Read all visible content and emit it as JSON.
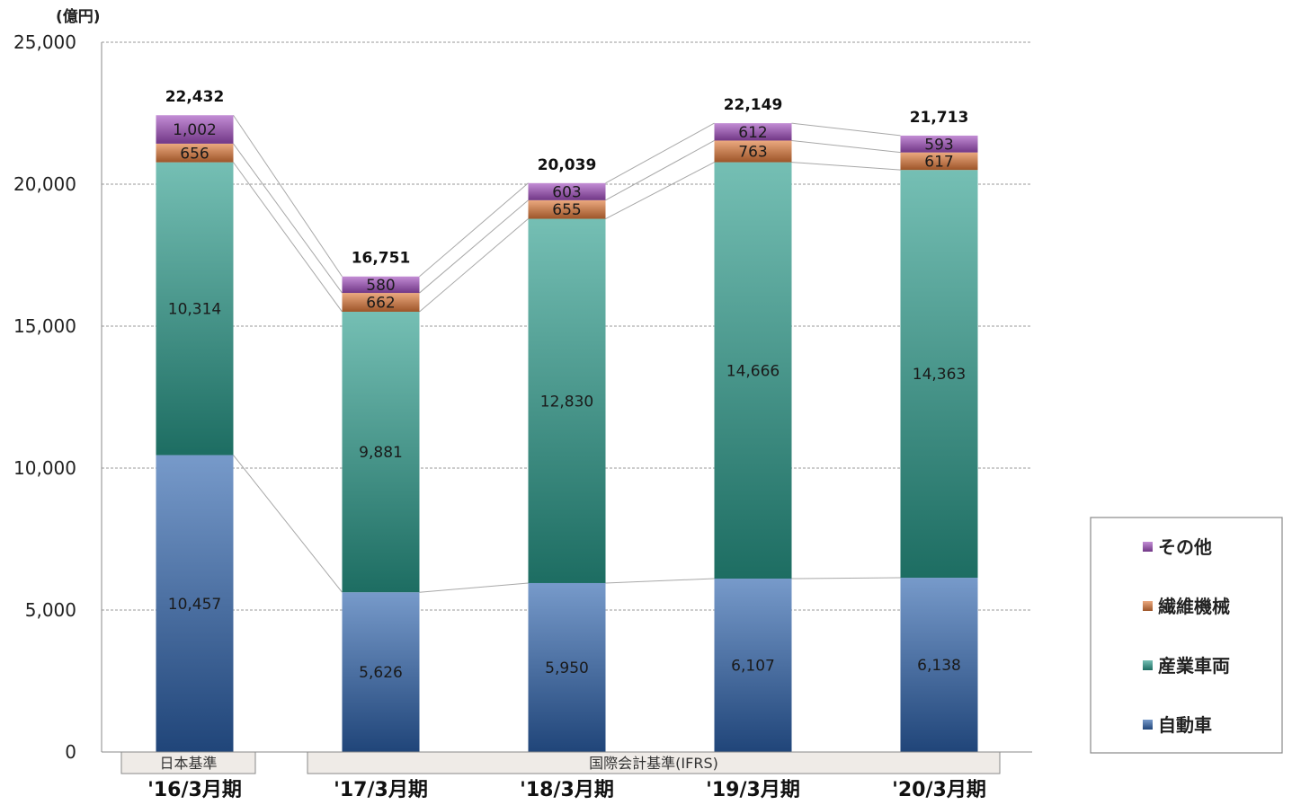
{
  "chart_data": {
    "type": "bar",
    "stacked": true,
    "unit_label": "(億円)",
    "categories": [
      "'16/3月期",
      "'17/3月期",
      "'18/3月期",
      "'19/3月期",
      "'20/3月期"
    ],
    "series": [
      {
        "name": "自動車",
        "values": [
          10457,
          5626,
          5950,
          6107,
          6138
        ],
        "color": "#2e63ad"
      },
      {
        "name": "産業車両",
        "values": [
          10314,
          9881,
          12830,
          14666,
          14363
        ],
        "color": "#2a9c8c"
      },
      {
        "name": "繊維機械",
        "values": [
          656,
          662,
          655,
          763,
          617
        ],
        "color": "#e07a3a"
      },
      {
        "name": "その他",
        "values": [
          1002,
          580,
          603,
          612,
          593
        ],
        "color": "#a24fbf"
      }
    ],
    "series_labels": [
      [
        "10,457",
        "5,626",
        "5,950",
        "6,107",
        "6,138"
      ],
      [
        "10,314",
        "9,881",
        "12,830",
        "14,666",
        "14,363"
      ],
      [
        "656",
        "662",
        "655",
        "763",
        "617"
      ],
      [
        "1,002",
        "580",
        "603",
        "612",
        "593"
      ]
    ],
    "totals": [
      22432,
      16751,
      20039,
      22149,
      21713
    ],
    "total_labels": [
      "22,432",
      "16,751",
      "20,039",
      "22,149",
      "21,713"
    ],
    "ylim": [
      0,
      25000
    ],
    "yticks": [
      0,
      5000,
      10000,
      15000,
      20000,
      25000
    ],
    "ytick_labels": [
      "0",
      "5,000",
      "10,000",
      "15,000",
      "20,000",
      "25,000"
    ],
    "grid": true,
    "legend_position": "right",
    "standard_groups": [
      {
        "label": "日本基準",
        "start": 0,
        "end": 0
      },
      {
        "label": "国際会計基準(IFRS)",
        "start": 1,
        "end": 4
      }
    ]
  }
}
